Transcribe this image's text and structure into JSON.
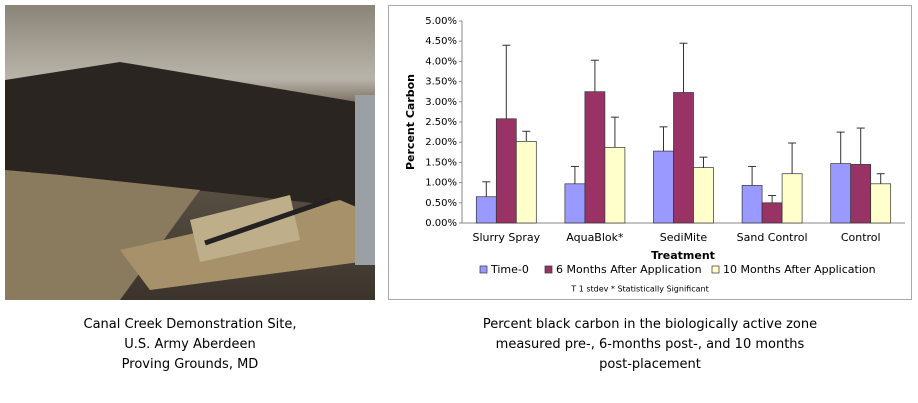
{
  "chart_data": {
    "type": "bar",
    "y_label": "Percent Carbon",
    "x_label": "Treatment",
    "note": "T 1 stdev  * Statistically Significant",
    "categories": [
      "Slurry Spray",
      "AquaBlok*",
      "SediMite",
      "Sand Control",
      "Control"
    ],
    "series": [
      {
        "name": "Time-0",
        "color": "#9999ff",
        "values": [
          0.65,
          0.97,
          1.78,
          0.93,
          1.47
        ],
        "errors": [
          0.37,
          0.43,
          0.6,
          0.47,
          0.78
        ]
      },
      {
        "name": "6 Months After Application",
        "color": "#993366",
        "values": [
          2.58,
          3.25,
          3.23,
          0.5,
          1.45
        ],
        "errors": [
          1.82,
          0.78,
          1.22,
          0.18,
          0.9
        ]
      },
      {
        "name": "10 Months After Application",
        "color": "#ffffcc",
        "values": [
          2.02,
          1.87,
          1.37,
          1.22,
          0.97
        ],
        "errors": [
          0.25,
          0.75,
          0.26,
          0.76,
          0.25
        ]
      }
    ],
    "ylim": [
      0,
      5
    ],
    "yticks": [
      {
        "value": 0,
        "label": "0.00%"
      },
      {
        "value": 0.5,
        "label": "0.50%"
      },
      {
        "value": 1,
        "label": "1.00%"
      },
      {
        "value": 1.5,
        "label": "1.50%"
      },
      {
        "value": 2,
        "label": "2.00%"
      },
      {
        "value": 2.5,
        "label": "2.50%"
      },
      {
        "value": 3,
        "label": "3.00%"
      },
      {
        "value": 3.5,
        "label": "3.50%"
      },
      {
        "value": 4,
        "label": "4.00%"
      },
      {
        "value": 4.5,
        "label": "4.50%"
      },
      {
        "value": 5,
        "label": "5.00%"
      }
    ],
    "legend": "bottom"
  },
  "photo_caption": [
    "Canal Creek Demonstration Site,",
    "U.S. Army Aberdeen",
    "Proving Grounds, MD"
  ],
  "chart_caption": [
    "Percent black carbon in the biologically active zone",
    "measured pre-, 6-months post-, and 10 months",
    "post-placement"
  ]
}
